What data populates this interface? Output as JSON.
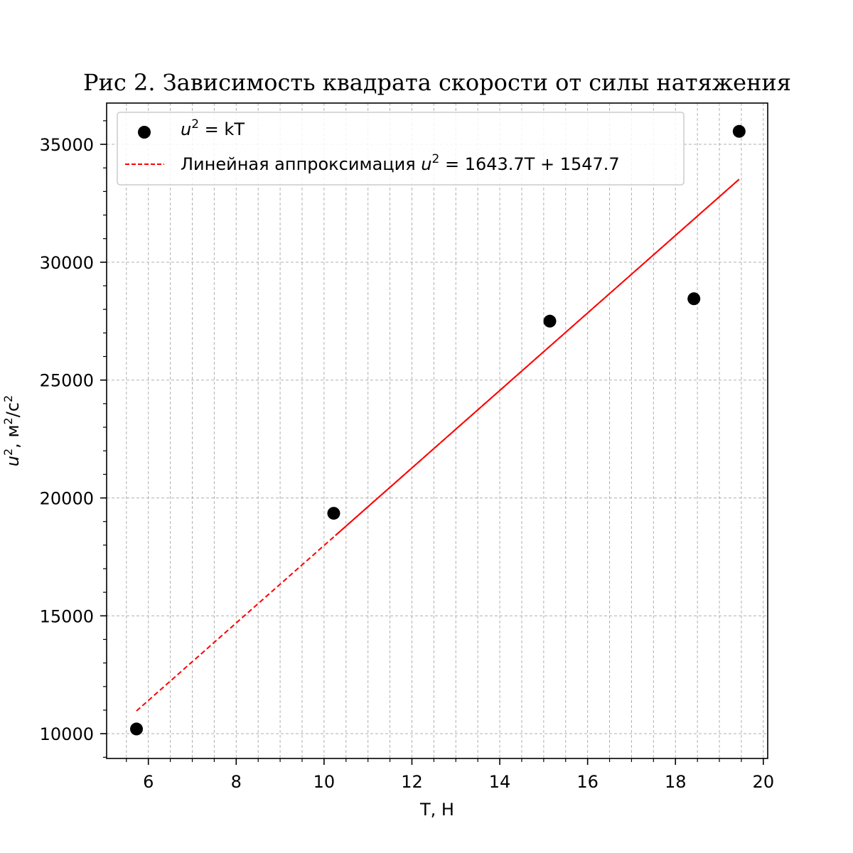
{
  "chart_data": {
    "type": "scatter",
    "title": "Рис 2. Зависимость квадрата скорости от силы натяжения",
    "xlabel": "T, Н",
    "ylabel": "u², м²/с²",
    "xlim": [
      5.05,
      20.1
    ],
    "ylim": [
      8950,
      36750
    ],
    "xticks": [
      "6",
      "8",
      "10",
      "12",
      "14",
      "16",
      "18",
      "20"
    ],
    "yticks": [
      "10000",
      "15000",
      "20000",
      "25000",
      "30000",
      "35000"
    ],
    "grid": true,
    "legend_position": "top-left",
    "series": [
      {
        "name": "u² = kT",
        "kind": "scatter",
        "color": "#000000",
        "x": [
          5.73,
          10.22,
          15.14,
          18.42,
          19.45
        ],
        "y": [
          10200,
          19350,
          27500,
          28450,
          35550
        ]
      },
      {
        "name": "Линейная аппроксимация u² = 1643.7T + 1547.7",
        "kind": "line",
        "color": "#ff0000",
        "x": [
          5.73,
          19.45
        ],
        "y": [
          10966,
          33517
        ]
      }
    ],
    "legend": {
      "scatter_label": {
        "math": "u",
        "sup": "2",
        "text": " = kT"
      },
      "line_label": {
        "text": "Линейная аппроксимация ",
        "math": "u",
        "sup": "2",
        "formula": " = 1643.7T + 1547.7"
      }
    },
    "ylabel_parts": {
      "math": "u",
      "sup": "2",
      "rest": ", м",
      "sup2": "2",
      "rest2": "/с",
      "sup3": "2"
    }
  }
}
